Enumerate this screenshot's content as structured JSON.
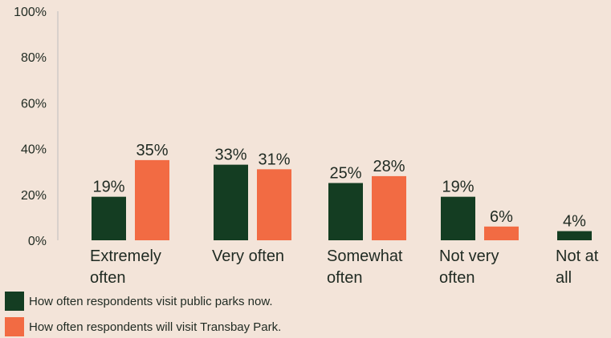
{
  "chart_data": {
    "type": "bar",
    "categories": [
      [
        "Extremely",
        "often"
      ],
      [
        "Very often"
      ],
      [
        "Somewhat",
        "often"
      ],
      [
        "Not very",
        "often"
      ],
      [
        "Not at",
        "all"
      ]
    ],
    "series": [
      {
        "name": "How often respondents visit public parks now.",
        "color": "#143d22",
        "values": [
          19,
          33,
          25,
          19,
          4
        ],
        "labels": [
          "19%",
          "33%",
          "25%",
          "19%",
          "4%"
        ]
      },
      {
        "name": "How often respondents will visit Transbay Park.",
        "color": "#f26b43",
        "values": [
          35,
          31,
          28,
          6,
          null
        ],
        "labels": [
          "35%",
          "31%",
          "28%",
          "6%",
          ""
        ]
      }
    ],
    "ylim": [
      0,
      100
    ],
    "yticks": [
      "0%",
      "20%",
      "40%",
      "60%",
      "80%",
      "100%"
    ],
    "grid": false,
    "legend_position": "bottom-left",
    "axis_color": "#bdbdbd"
  }
}
